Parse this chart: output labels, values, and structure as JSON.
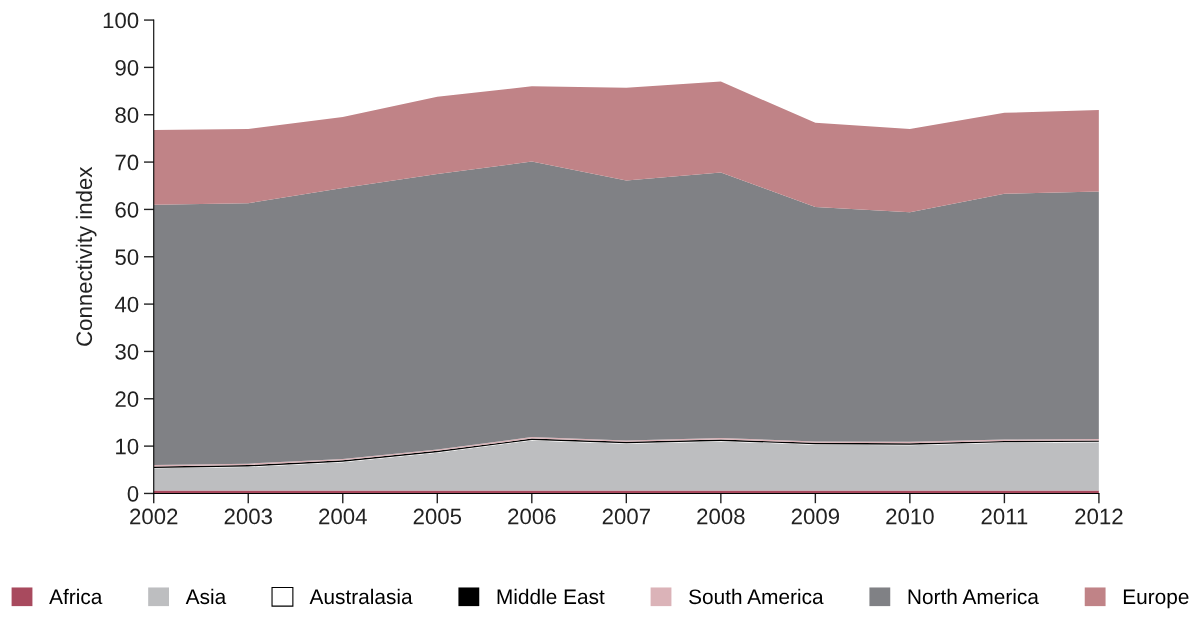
{
  "chart_data": {
    "type": "area",
    "stacked": true,
    "ylabel": "Connectivity index",
    "x": [
      2002,
      2003,
      2004,
      2005,
      2006,
      2007,
      2008,
      2009,
      2010,
      2011,
      2012
    ],
    "xlim": [
      2002,
      2012
    ],
    "xticks": [
      2002,
      2003,
      2004,
      2005,
      2006,
      2007,
      2008,
      2009,
      2010,
      2011,
      2012
    ],
    "ylim": [
      0,
      100
    ],
    "yticks": [
      0,
      10,
      20,
      30,
      40,
      50,
      60,
      70,
      80,
      90,
      100
    ],
    "grid": false,
    "legend": "bottom",
    "series": [
      {
        "name": "Africa",
        "color": "#a84a5e",
        "values": [
          0.6,
          0.6,
          0.6,
          0.6,
          0.6,
          0.6,
          0.6,
          0.6,
          0.6,
          0.6,
          0.6
        ]
      },
      {
        "name": "Asia",
        "color": "#bdbec0",
        "values": [
          4.7,
          5.0,
          6.0,
          8.0,
          10.6,
          9.9,
          10.4,
          9.7,
          9.6,
          10.1,
          10.2
        ]
      },
      {
        "name": "Australasia",
        "color": "#ffffff",
        "values": [
          0.1,
          0.1,
          0.1,
          0.1,
          0.1,
          0.1,
          0.1,
          0.1,
          0.1,
          0.1,
          0.1
        ]
      },
      {
        "name": "Middle East",
        "color": "#000000",
        "values": [
          0.3,
          0.3,
          0.3,
          0.3,
          0.3,
          0.3,
          0.3,
          0.3,
          0.3,
          0.3,
          0.3
        ]
      },
      {
        "name": "South America",
        "color": "#dbb3b8",
        "values": [
          0.3,
          0.3,
          0.3,
          0.3,
          0.3,
          0.3,
          0.3,
          0.3,
          0.3,
          0.3,
          0.3
        ]
      },
      {
        "name": "North America",
        "color": "#808185",
        "values": [
          55.0,
          55.0,
          57.2,
          58.2,
          58.2,
          54.9,
          56.1,
          49.5,
          48.5,
          51.9,
          52.3
        ]
      },
      {
        "name": "Europe",
        "color": "#c08387",
        "values": [
          15.8,
          15.7,
          15.0,
          16.3,
          15.9,
          19.6,
          19.2,
          17.8,
          17.6,
          17.1,
          17.2
        ]
      }
    ]
  }
}
